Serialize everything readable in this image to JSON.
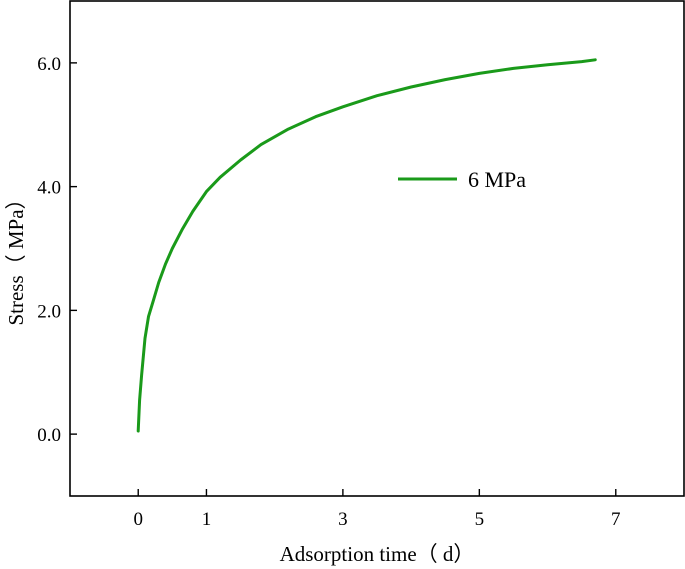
{
  "chart_data": {
    "type": "line",
    "title": "",
    "xlabel": "Adsorption time（ d）",
    "ylabel": "Stress（ MPa）",
    "xlim": [
      -1,
      8
    ],
    "ylim": [
      -1,
      7
    ],
    "x_ticks": [
      0,
      1,
      3,
      5,
      7
    ],
    "x_tick_labels": [
      "0",
      "1",
      "3",
      "5",
      "7"
    ],
    "y_ticks": [
      0,
      2,
      4,
      6
    ],
    "y_tick_labels": [
      "0.0",
      "2.0",
      "4.0",
      "6.0"
    ],
    "grid": false,
    "legend_position": "center-right",
    "series": [
      {
        "name": "6 MPa",
        "color": "#1a9a1a",
        "x": [
          0.0,
          0.02,
          0.05,
          0.1,
          0.15,
          0.22,
          0.3,
          0.4,
          0.5,
          0.65,
          0.8,
          1.0,
          1.2,
          1.5,
          1.8,
          2.2,
          2.6,
          3.0,
          3.5,
          4.0,
          4.5,
          5.0,
          5.5,
          6.0,
          6.5,
          6.7
        ],
        "y": [
          0.05,
          0.55,
          0.95,
          1.55,
          1.9,
          2.15,
          2.45,
          2.75,
          3.0,
          3.32,
          3.6,
          3.92,
          4.15,
          4.43,
          4.68,
          4.93,
          5.13,
          5.29,
          5.47,
          5.61,
          5.73,
          5.83,
          5.91,
          5.97,
          6.02,
          6.05
        ]
      }
    ]
  }
}
